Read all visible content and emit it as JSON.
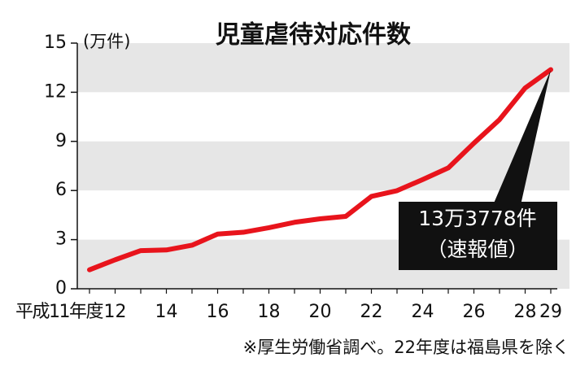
{
  "chart_data": {
    "type": "line",
    "title": "児童虐待対応件数",
    "unit_label": "(万件)",
    "categories": [
      "平成11年度",
      "12",
      null,
      "14",
      null,
      "16",
      null,
      "18",
      null,
      "20",
      null,
      "22",
      null,
      "24",
      null,
      "26",
      null,
      "28",
      "29"
    ],
    "series": [
      {
        "name": "児童虐待対応件数",
        "color": "#e8141c",
        "values": [
          1.16,
          1.77,
          2.33,
          2.37,
          2.66,
          3.34,
          3.45,
          3.73,
          4.06,
          4.27,
          4.42,
          5.64,
          5.99,
          6.67,
          7.38,
          8.89,
          10.33,
          12.26,
          13.38
        ]
      }
    ],
    "ylim": [
      0,
      15
    ],
    "yticks": [
      0,
      3,
      6,
      9,
      12,
      15
    ],
    "grid": "bands",
    "annotation": [
      "13万3778件",
      "（速報値）"
    ],
    "note": "※厚生労働省調べ。22年度は福島県を除く"
  }
}
